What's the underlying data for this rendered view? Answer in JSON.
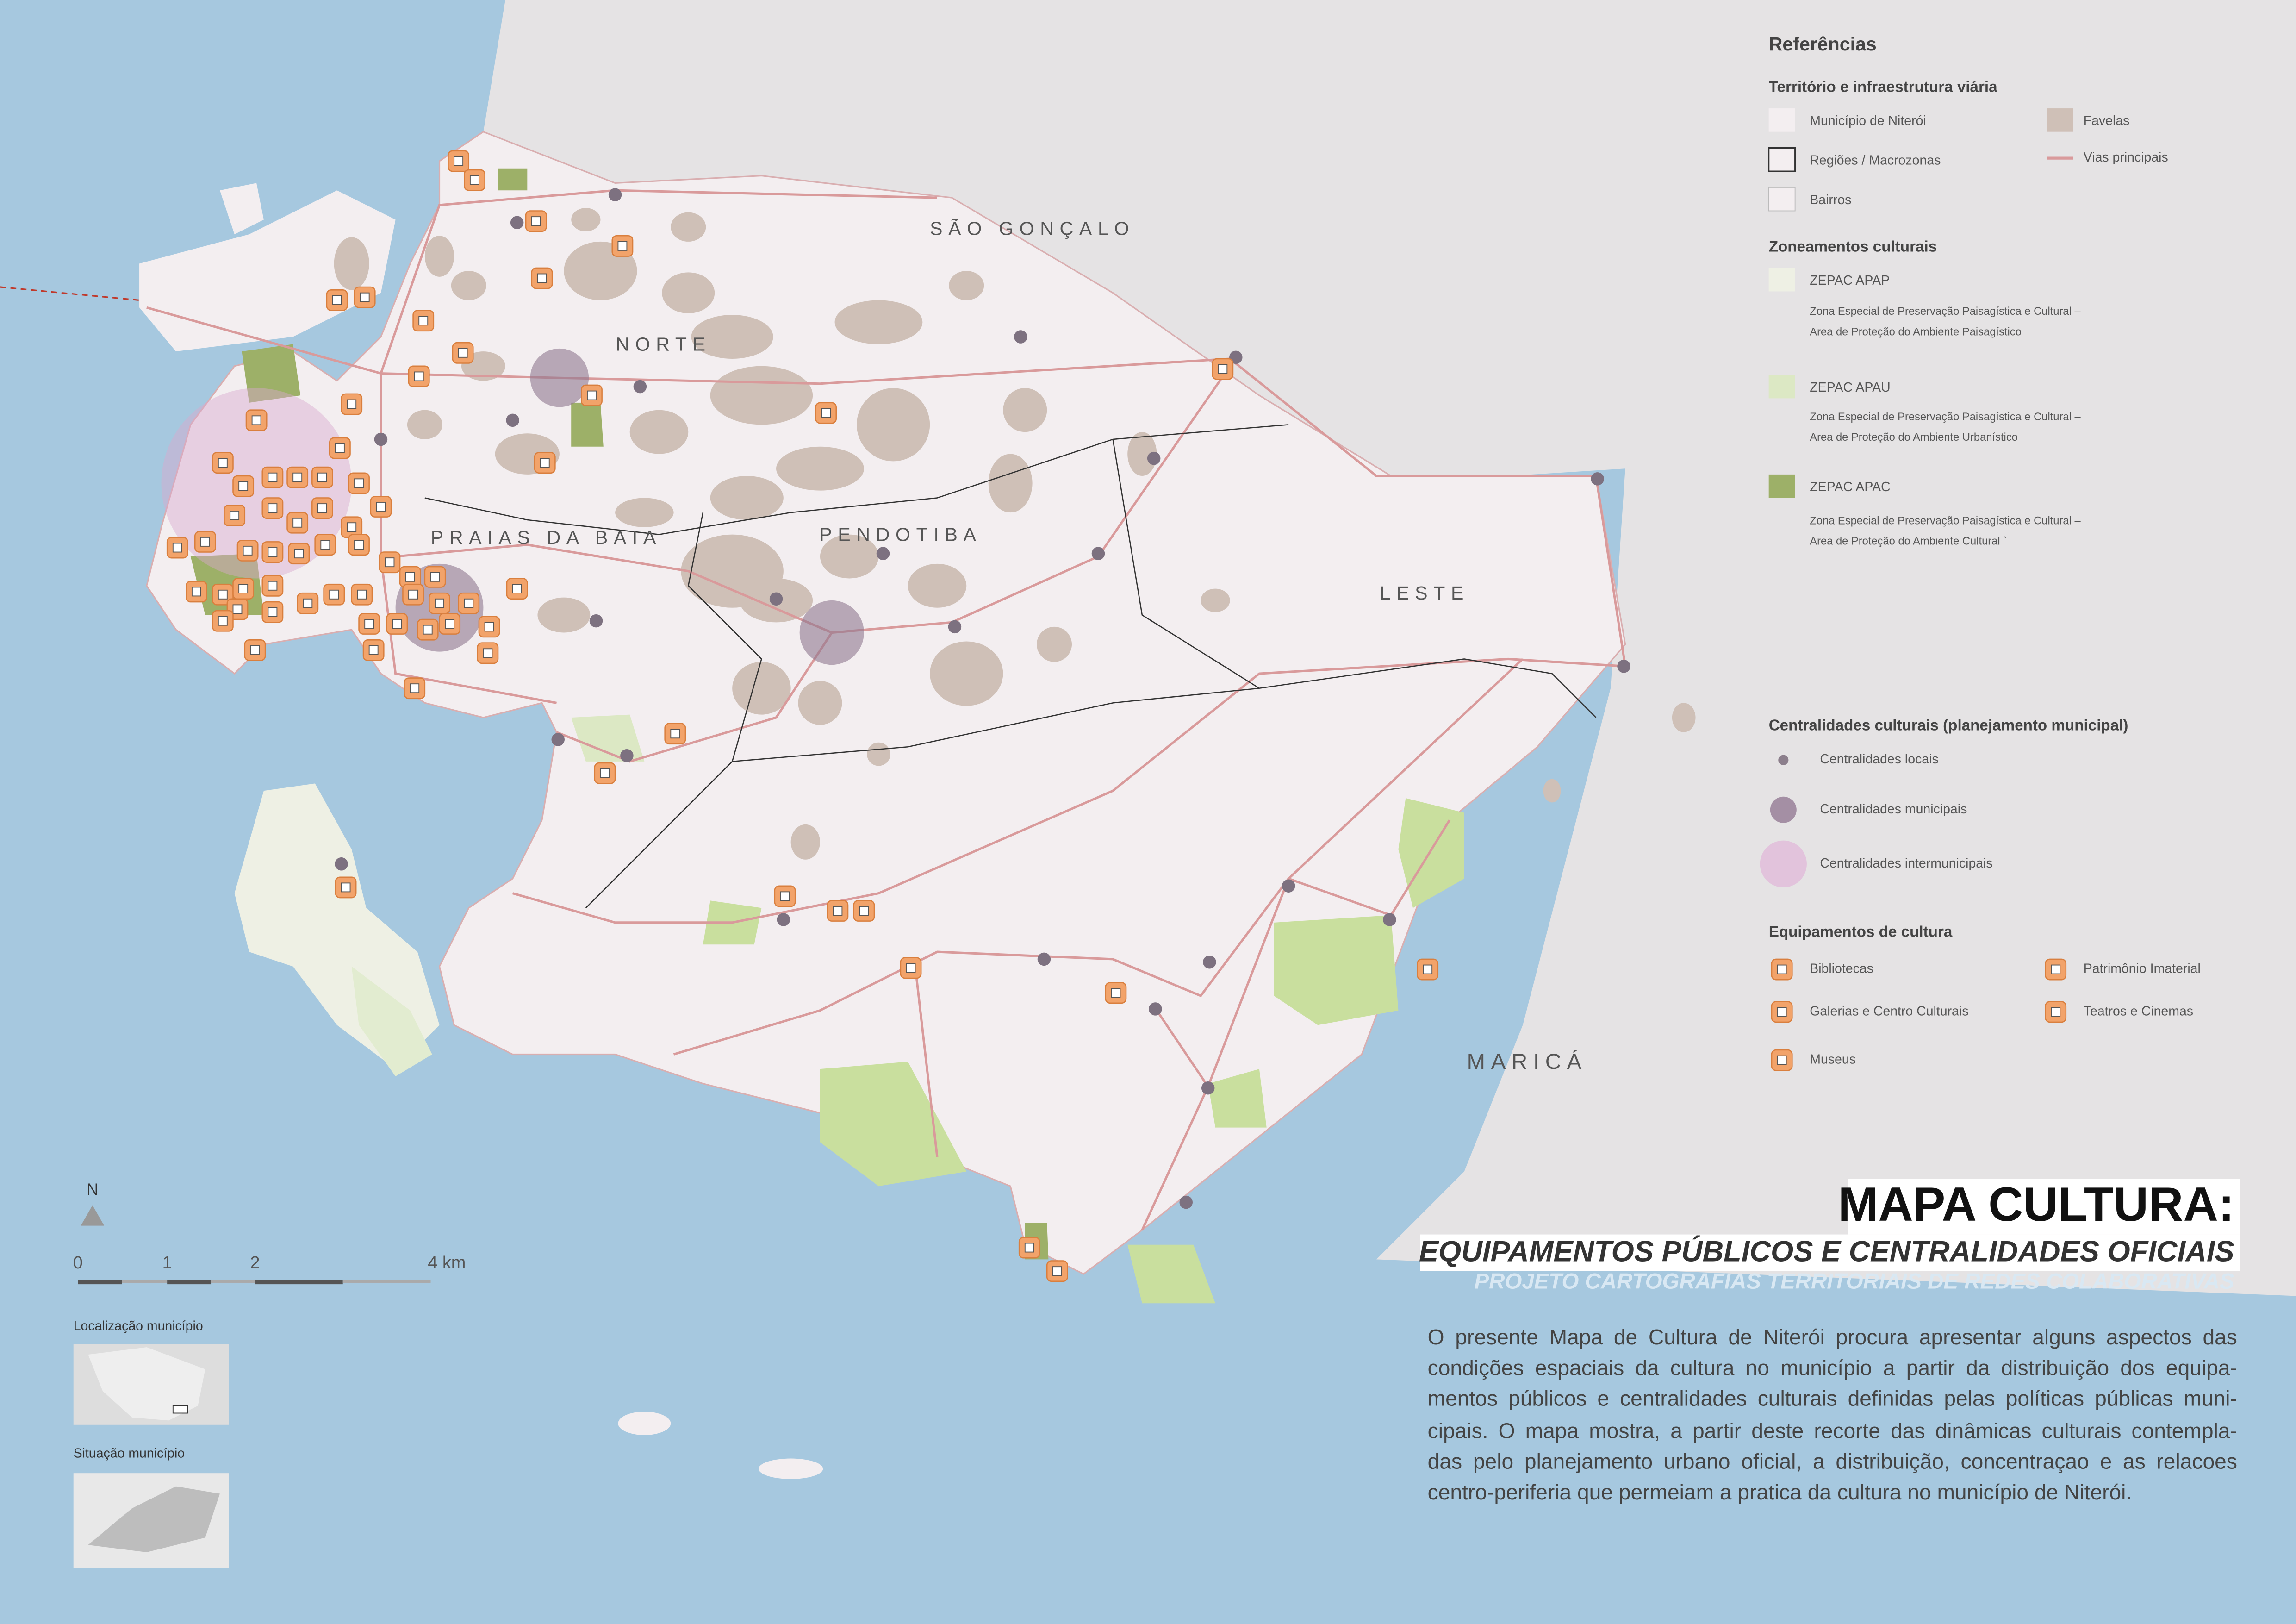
{
  "map_labels": {
    "sao_goncalo": "SÃO GONÇALO",
    "norte": "NORTE",
    "praias": "PRAIAS DA BAIA",
    "pendotiba": "PENDOTIBA",
    "leste": "LESTE",
    "marica": "MARICÁ"
  },
  "legend": {
    "title": "Referências",
    "territorio": {
      "heading": "Território e infraestrutura viária",
      "items": [
        "Município de Niterói",
        "Regiões / Macrozonas",
        "Bairros",
        "Favelas",
        "Vias principais"
      ]
    },
    "zoneamentos": {
      "heading": "Zoneamentos culturais",
      "items": [
        {
          "name": "ZEPAC APAP",
          "lines": [
            "Zona Especial de Preservação Paisagística e Cultural –",
            "Area de Proteção do Ambiente Paisagístico"
          ]
        },
        {
          "name": "ZEPAC APAU",
          "lines": [
            "Zona Especial de Preservação Paisagística e Cultural –",
            "Area de Proteção do Ambiente Urbanístico"
          ]
        },
        {
          "name": "ZEPAC APAC",
          "lines": [
            "Zona Especial de Preservação Paisagística e Cultural –",
            "Area de Proteção do Ambiente Cultural `"
          ]
        }
      ]
    },
    "centralidades": {
      "heading": "Centralidades culturais (planejamento municipal)",
      "items": [
        "Centralidades locais",
        "Centralidades municipais",
        "Centralidades intermunicipais"
      ]
    },
    "equipamentos": {
      "heading": "Equipamentos de cultura",
      "items": [
        "Bibliotecas",
        "Galerias e Centro Culturais",
        "Museus",
        "Patrimônio Imaterial",
        "Teatros e Cinemas"
      ]
    }
  },
  "title": {
    "main": "MAPA CULTURA:",
    "subtitle": "EQUIPAMENTOS PÚBLICOS E CENTRALIDADES OFICIAIS",
    "project": "PROJETO CARTOGRAFIAS TERRITORIAIS DE REDES COLABORATIVAS"
  },
  "description": [
    "O presente Mapa de Cultura de Niterói procura apresentar alguns aspectos das",
    "condições  espaciais da cultura no município a partir da distribuição dos equipa-",
    "mentos públicos e centralidades culturais definidas pelas políticas públicas muni-",
    "cipais. O mapa mostra, a partir deste recorte das dinâmicas culturais contempla-",
    "das pelo planejamento urbano oficial, a distribuição, concentraçao e as relacoes",
    "centro-periferia que permeiam a pratica da cultura no município de Niterói."
  ],
  "scale": {
    "north": "N",
    "labels": [
      "0",
      "1",
      "2",
      "4 km"
    ]
  },
  "insets": {
    "localizacao": "Localização município",
    "situacao": "Situação município"
  }
}
